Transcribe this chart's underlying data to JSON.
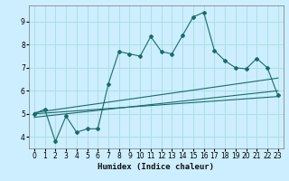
{
  "title": "",
  "xlabel": "Humidex (Indice chaleur)",
  "bg_color": "#cceeff",
  "grid_color": "#aadddd",
  "line_color": "#1a6b6b",
  "xlim": [
    -0.5,
    23.5
  ],
  "ylim": [
    3.5,
    9.7
  ],
  "xticks": [
    0,
    1,
    2,
    3,
    4,
    5,
    6,
    7,
    8,
    9,
    10,
    11,
    12,
    13,
    14,
    15,
    16,
    17,
    18,
    19,
    20,
    21,
    22,
    23
  ],
  "yticks": [
    4,
    5,
    6,
    7,
    8,
    9
  ],
  "series1_y": [
    5.0,
    5.2,
    3.8,
    4.9,
    4.2,
    4.35,
    4.35,
    6.3,
    7.7,
    7.6,
    7.5,
    8.35,
    7.7,
    7.6,
    8.4,
    9.2,
    9.4,
    7.75,
    7.3,
    7.0,
    6.95,
    7.4,
    7.0,
    5.8
  ],
  "line2_x": [
    0,
    23
  ],
  "line2_y": [
    5.05,
    6.55
  ],
  "line3_x": [
    0,
    23
  ],
  "line3_y": [
    4.85,
    6.0
  ],
  "line4_x": [
    0,
    23
  ],
  "line4_y": [
    5.0,
    5.75
  ]
}
